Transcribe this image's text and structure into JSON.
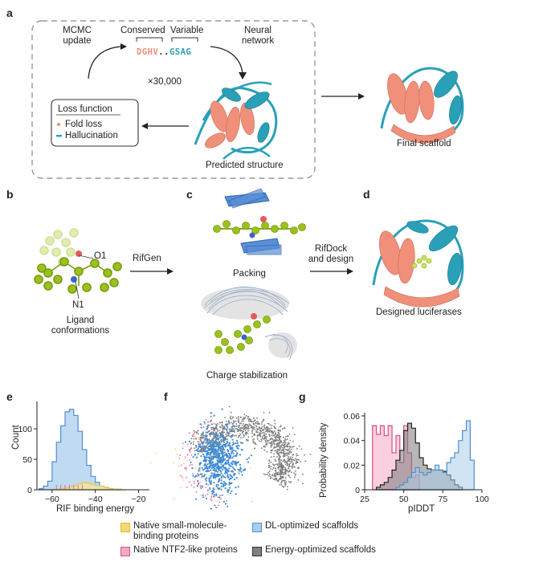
{
  "panels": {
    "a": {
      "letter": "a",
      "mcmc": [
        "MCMC",
        "update"
      ],
      "conserved": "Conserved",
      "variable": "Variable",
      "seq_conserved": "DGHV",
      "seq_dots": "..",
      "seq_variable": "GSAG",
      "neural": [
        "Neural",
        "network"
      ],
      "iterations": "×30,000",
      "loss_title": "Loss function",
      "loss_items": [
        "Fold loss",
        "Hallucination"
      ],
      "predicted": "Predicted structure",
      "final": "Final scaffold"
    },
    "b": {
      "letter": "b",
      "o1": "O1",
      "n1": "N1",
      "caption": [
        "Ligand",
        "conformations"
      ],
      "arrow": "RifGen"
    },
    "c": {
      "letter": "c",
      "packing": "Packing",
      "charge": "Charge stabilization",
      "arrow": [
        "RifDock",
        "and design"
      ]
    },
    "d": {
      "letter": "d",
      "caption": "Designed luciferases"
    },
    "e": {
      "letter": "e"
    },
    "f": {
      "letter": "f"
    },
    "g": {
      "letter": "g"
    }
  },
  "colors": {
    "salmon": "#f0907a",
    "teal": "#2aa0b8",
    "ligand": "#9ac21d",
    "blue_fill": "#a9cdea",
    "blue_line": "#4f8fd0",
    "pink": "#e46b9a",
    "yellow": "#f0d060",
    "gray": "#6e6e6e"
  },
  "legend": [
    {
      "label": [
        "Native small-molecule-",
        "binding proteins"
      ],
      "color": "#f3d878"
    },
    {
      "label": [
        "DL-optimized scaffolds"
      ],
      "color": "#a9cdea"
    },
    {
      "label": [
        "Native NTF2-like proteins"
      ],
      "color": "#f5a8c4"
    },
    {
      "label": [
        "Energy-optimized scaffolds"
      ],
      "color": "#808080"
    }
  ],
  "chart_data": [
    {
      "type": "histogram",
      "panel": "e",
      "xlabel": "RIF binding energy",
      "ylabel": "Count",
      "xlim": [
        -67,
        -15
      ],
      "ylim": [
        0,
        145
      ],
      "xticks": [
        -60,
        -40,
        -20
      ],
      "yticks": [
        0,
        50,
        100
      ],
      "bin_width": 2,
      "series": [
        {
          "name": "DL-optimized scaffolds",
          "color": "#4f8fd0",
          "bin_starts": [
            -66,
            -64,
            -62,
            -60,
            -58,
            -56,
            -54,
            -52,
            -50,
            -48,
            -46,
            -44,
            -42,
            -40,
            -38,
            -36,
            -34,
            -32,
            -30,
            -28
          ],
          "counts": [
            2,
            6,
            14,
            46,
            78,
            105,
            128,
            132,
            122,
            96,
            66,
            40,
            22,
            12,
            6,
            4,
            2,
            1,
            0,
            0
          ]
        },
        {
          "name": "Native small-molecule-binding proteins",
          "color": "#e6c84a",
          "bin_starts": [
            -58,
            -56,
            -54,
            -52,
            -50,
            -48,
            -46,
            -44,
            -42,
            -40,
            -38,
            -36,
            -34,
            -32,
            -30
          ],
          "counts": [
            1,
            2,
            3,
            5,
            7,
            10,
            12,
            11,
            9,
            7,
            6,
            4,
            2,
            1,
            1
          ]
        }
      ],
      "rug_pink": [
        -58,
        -56,
        -54,
        -52,
        -50,
        -48,
        -46
      ]
    },
    {
      "type": "scatter",
      "panel": "f",
      "clusters": [
        {
          "name": "Energy-optimized scaffolds",
          "color": "#7a7a7a",
          "n": 1100
        },
        {
          "name": "DL-optimized scaffolds",
          "color": "#3f8ad6",
          "n": 650
        },
        {
          "name": "Native NTF2-like proteins",
          "color": "#e46b9a",
          "n": 80
        },
        {
          "name": "Native small-molecule-binding proteins",
          "color": "#e6c84a",
          "n": 40
        }
      ]
    },
    {
      "type": "histogram",
      "panel": "g",
      "xlabel": "pIDDT",
      "ylabel": "Probability density",
      "xlim": [
        25,
        100
      ],
      "ylim": [
        0,
        0.06
      ],
      "xticks": [
        25,
        50,
        75,
        100
      ],
      "yticks": [
        0,
        0.02,
        0.04,
        0.06
      ],
      "yticklabels": [
        "0",
        "0.02",
        "0.04",
        "0.06"
      ],
      "bin_width": 2.5,
      "series": [
        {
          "name": "Native NTF2-like proteins",
          "color": "#d94f86",
          "fill": "#f5a8c4",
          "bin_starts": [
            30,
            32.5,
            35,
            37.5,
            40,
            42.5,
            45,
            47.5,
            50,
            52.5,
            55,
            57.5
          ],
          "density": [
            0.052,
            0.045,
            0.052,
            0.044,
            0.052,
            0.03,
            0.044,
            0.022,
            0.052,
            0.03,
            0.01,
            0.012
          ]
        },
        {
          "name": "Energy-optimized scaffolds",
          "color": "#222222",
          "fill": "#7b7b7b",
          "bin_starts": [
            32.5,
            35,
            37.5,
            40,
            42.5,
            45,
            47.5,
            50,
            52.5,
            55,
            57.5,
            60,
            62.5,
            65,
            67.5,
            70,
            72.5,
            75,
            77.5,
            80,
            82.5,
            85
          ],
          "density": [
            0.002,
            0.004,
            0.006,
            0.01,
            0.016,
            0.024,
            0.032,
            0.048,
            0.054,
            0.05,
            0.038,
            0.026,
            0.02,
            0.017,
            0.016,
            0.016,
            0.016,
            0.015,
            0.012,
            0.008,
            0.004,
            0.002
          ]
        },
        {
          "name": "DL-optimized scaffolds",
          "color": "#4f8fd0",
          "fill": "#a9cdea",
          "bin_starts": [
            45,
            47.5,
            50,
            52.5,
            55,
            57.5,
            60,
            62.5,
            65,
            67.5,
            70,
            72.5,
            75,
            77.5,
            80,
            82.5,
            85,
            87.5,
            90,
            92.5
          ],
          "density": [
            0.002,
            0.004,
            0.006,
            0.01,
            0.014,
            0.018,
            0.014,
            0.012,
            0.014,
            0.016,
            0.02,
            0.016,
            0.014,
            0.022,
            0.026,
            0.03,
            0.04,
            0.048,
            0.056,
            0.024
          ]
        }
      ]
    }
  ]
}
